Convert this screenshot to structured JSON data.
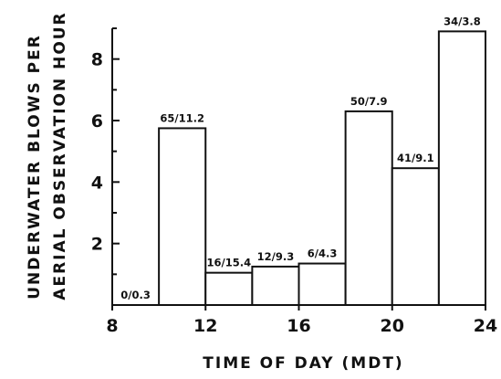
{
  "chart_data": {
    "type": "bar",
    "title": "",
    "xlabel": "TIME OF DAY (MDT)",
    "ylabel_line1": "UNDERWATER BLOWS PER",
    "ylabel_line2": "AERIAL OBSERVATION HOUR",
    "xlim": [
      8,
      24
    ],
    "ylim": [
      0,
      9
    ],
    "xticks": [
      8,
      12,
      16,
      20,
      24
    ],
    "yticks_labeled": [
      2,
      4,
      6,
      8
    ],
    "yticks_minor": [
      1,
      3,
      5,
      7,
      9
    ],
    "grid": false,
    "bars": [
      {
        "x0": 8,
        "x1": 10,
        "value": 0,
        "label": "0/0.3"
      },
      {
        "x0": 10,
        "x1": 12,
        "value": 5.75,
        "label": "65/11.2"
      },
      {
        "x0": 12,
        "x1": 14,
        "value": 1.05,
        "label": "16/15.4"
      },
      {
        "x0": 14,
        "x1": 16,
        "value": 1.25,
        "label": "12/9.3"
      },
      {
        "x0": 16,
        "x1": 18,
        "value": 1.35,
        "label": "6/4.3"
      },
      {
        "x0": 18,
        "x1": 20,
        "value": 6.3,
        "label": "50/7.9"
      },
      {
        "x0": 20,
        "x1": 22,
        "value": 4.45,
        "label": "41/9.1"
      },
      {
        "x0": 22,
        "x1": 24,
        "value": 8.9,
        "label": "34/3.8"
      }
    ]
  }
}
